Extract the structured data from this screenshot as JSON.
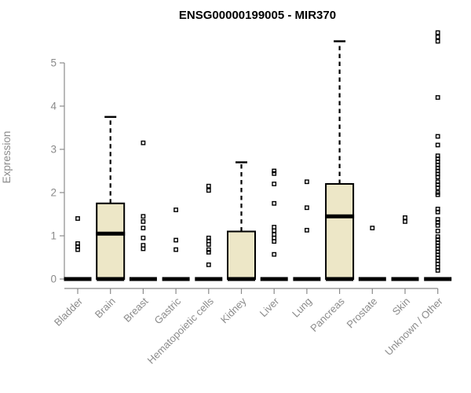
{
  "title": "ENSG00000199005 - MIR370",
  "chart_data": {
    "type": "boxplot",
    "title": "ENSG00000199005 - MIR370",
    "ylabel": "Expression",
    "ylim": [
      0,
      5.75
    ],
    "yticks": [
      0,
      1,
      2,
      3,
      4,
      5
    ],
    "grid": false,
    "legend": "none",
    "marker": "open-square",
    "categories": [
      "Bladder",
      "Brain",
      "Breast",
      "Gastric",
      "Hematopoietic cells",
      "Kidney",
      "Liver",
      "Lung",
      "Pancreas",
      "Prostate",
      "Skin",
      "Unknown / Other"
    ],
    "boxes": [
      {
        "category": "Bladder",
        "whisker_low": 0,
        "q1": 0,
        "median": 0,
        "q3": 0,
        "whisker_high": 0,
        "outliers": [
          1.4,
          0.82,
          0.75,
          0.68
        ]
      },
      {
        "category": "Brain",
        "whisker_low": 0,
        "q1": 0,
        "median": 1.05,
        "q3": 1.75,
        "whisker_high": 3.75,
        "outliers": []
      },
      {
        "category": "Breast",
        "whisker_low": 0,
        "q1": 0,
        "median": 0,
        "q3": 0,
        "whisker_high": 0,
        "outliers": [
          3.15,
          1.45,
          1.33,
          1.18,
          0.95,
          0.78,
          0.7
        ]
      },
      {
        "category": "Gastric",
        "whisker_low": 0,
        "q1": 0,
        "median": 0,
        "q3": 0,
        "whisker_high": 0,
        "outliers": [
          1.6,
          0.9,
          0.68
        ]
      },
      {
        "category": "Hematopoietic cells",
        "whisker_low": 0,
        "q1": 0,
        "median": 0,
        "q3": 0,
        "whisker_high": 0,
        "outliers": [
          2.15,
          2.05,
          0.95,
          0.88,
          0.8,
          0.68,
          0.62,
          0.33
        ]
      },
      {
        "category": "Kidney",
        "whisker_low": 0,
        "q1": 0,
        "median": 0,
        "q3": 1.1,
        "whisker_high": 2.7,
        "outliers": []
      },
      {
        "category": "Liver",
        "whisker_low": 0,
        "q1": 0,
        "median": 0,
        "q3": 0,
        "whisker_high": 0,
        "outliers": [
          2.5,
          2.44,
          2.2,
          1.75,
          1.2,
          1.12,
          1.03,
          0.95,
          0.87,
          0.57
        ]
      },
      {
        "category": "Lung",
        "whisker_low": 0,
        "q1": 0,
        "median": 0,
        "q3": 0,
        "whisker_high": 0,
        "outliers": [
          2.25,
          1.65,
          1.13
        ]
      },
      {
        "category": "Pancreas",
        "whisker_low": 0,
        "q1": 0,
        "median": 1.45,
        "q3": 2.2,
        "whisker_high": 5.5,
        "outliers": []
      },
      {
        "category": "Prostate",
        "whisker_low": 0,
        "q1": 0,
        "median": 0,
        "q3": 0,
        "whisker_high": 0,
        "outliers": [
          1.18
        ]
      },
      {
        "category": "Skin",
        "whisker_low": 0,
        "q1": 0,
        "median": 0,
        "q3": 0,
        "whisker_high": 0,
        "outliers": [
          1.42,
          1.33
        ]
      },
      {
        "category": "Unknown / Other",
        "whisker_low": 0,
        "q1": 0,
        "median": 0,
        "q3": 0,
        "whisker_high": 0,
        "outliers": [
          5.7,
          5.6,
          5.5,
          4.2,
          3.3,
          3.1,
          2.85,
          2.78,
          2.71,
          2.64,
          2.57,
          2.5,
          2.43,
          2.36,
          2.25,
          2.18,
          2.11,
          2.0,
          1.95,
          1.62,
          1.55,
          1.38,
          1.31,
          1.24,
          1.11,
          0.98,
          0.91,
          0.84,
          0.77,
          0.7,
          0.63,
          0.56,
          0.49,
          0.42,
          0.35,
          0.27,
          0.2
        ]
      }
    ],
    "colors": {
      "box_fill": "#EDE7C7",
      "box_border": "#000000",
      "median": "#000000",
      "whisker": "#000000",
      "outlier": "#000000",
      "axis": "#8B8B8B",
      "tick_label": "#8B8B8B",
      "title": "#000000",
      "background": "#FFFFFF"
    }
  }
}
